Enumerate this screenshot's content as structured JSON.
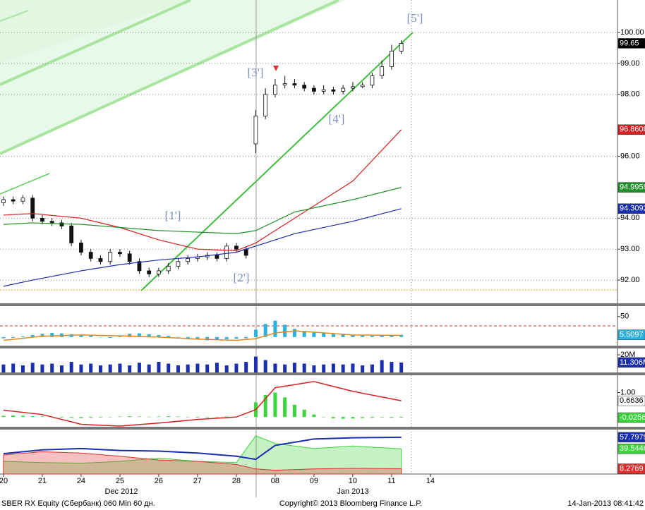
{
  "chart_data": [
    {
      "type": "candlestick",
      "xlim": [
        -0.09,
        15.82
      ],
      "xticks": [
        {
          "value": 0,
          "label": "20"
        },
        {
          "value": 1,
          "label": "21"
        },
        {
          "value": 2,
          "label": "24"
        },
        {
          "value": 3,
          "label": "25"
        },
        {
          "value": 4,
          "label": "26"
        },
        {
          "value": 5,
          "label": "27"
        },
        {
          "value": 6,
          "label": "28"
        },
        {
          "value": 7,
          "label": "08"
        },
        {
          "value": 8,
          "label": "09"
        },
        {
          "value": 9,
          "label": "10"
        },
        {
          "value": 10,
          "label": "11"
        },
        {
          "value": 11,
          "label": "14"
        }
      ],
      "months": [
        "Dec 2012",
        "Jan 2013"
      ],
      "ylim": [
        91.25,
        101.05
      ],
      "yticks": [
        {
          "value": 92,
          "label": "92.00"
        },
        {
          "value": 93,
          "label": "93.00"
        },
        {
          "value": 94,
          "label": "94.00"
        },
        {
          "value": 96,
          "label": "96.00"
        },
        {
          "value": 98,
          "label": "98.00"
        },
        {
          "value": 99,
          "label": "99.00"
        },
        {
          "value": 100,
          "label": "100.00"
        }
      ],
      "grid": true,
      "x": [
        0,
        0.25,
        0.5,
        0.75,
        1,
        1.25,
        1.5,
        1.75,
        2,
        2.25,
        2.5,
        2.75,
        3,
        3.25,
        3.5,
        3.75,
        4,
        4.25,
        4.5,
        4.75,
        5,
        5.25,
        5.5,
        5.75,
        6,
        6.25,
        6.5,
        6.75,
        7,
        7.25,
        7.5,
        7.75,
        8,
        8.25,
        8.5,
        8.75,
        9,
        9.25,
        9.5,
        9.75,
        10,
        10.25
      ],
      "open": [
        94.5,
        94.6,
        94.55,
        94.65,
        94.0,
        93.9,
        93.85,
        93.75,
        93.2,
        92.9,
        92.7,
        92.6,
        92.9,
        92.85,
        92.6,
        92.3,
        92.2,
        92.3,
        92.45,
        92.6,
        92.7,
        92.75,
        92.8,
        92.7,
        93.1,
        93.0,
        96.4,
        97.3,
        98.0,
        98.3,
        98.35,
        98.3,
        98.2,
        98.1,
        98.15,
        98.1,
        98.2,
        98.25,
        98.3,
        98.6,
        98.9,
        99.4
      ],
      "high": [
        94.7,
        94.7,
        94.75,
        94.75,
        94.1,
        94.0,
        93.95,
        93.85,
        93.3,
        93.0,
        92.8,
        93.0,
        93.0,
        92.95,
        92.7,
        92.4,
        92.4,
        92.55,
        92.7,
        92.8,
        92.85,
        92.9,
        92.9,
        93.2,
        93.2,
        93.1,
        97.5,
        98.2,
        98.5,
        98.6,
        98.5,
        98.4,
        98.3,
        98.3,
        98.25,
        98.3,
        98.4,
        98.4,
        98.7,
        99.1,
        99.6,
        99.75
      ],
      "low": [
        94.4,
        94.45,
        94.45,
        93.9,
        93.8,
        93.75,
        93.65,
        93.1,
        92.8,
        92.6,
        92.5,
        92.5,
        92.75,
        92.5,
        92.2,
        92.1,
        92.1,
        92.2,
        92.35,
        92.5,
        92.6,
        92.65,
        92.6,
        92.6,
        92.9,
        92.7,
        96.1,
        97.2,
        97.9,
        98.2,
        98.2,
        98.1,
        98.0,
        98.0,
        98.0,
        98.0,
        98.1,
        98.2,
        98.2,
        98.5,
        98.8,
        99.3
      ],
      "close": [
        94.6,
        94.55,
        94.65,
        94.0,
        93.9,
        93.85,
        93.75,
        93.2,
        92.9,
        92.7,
        92.6,
        92.9,
        92.85,
        92.6,
        92.3,
        92.2,
        92.3,
        92.45,
        92.6,
        92.7,
        92.75,
        92.8,
        92.7,
        93.1,
        93.0,
        92.8,
        97.3,
        98.0,
        98.3,
        98.35,
        98.3,
        98.2,
        98.1,
        98.15,
        98.1,
        98.2,
        98.25,
        98.3,
        98.6,
        98.9,
        99.4,
        99.65
      ],
      "last_value": 99.65,
      "series": [
        {
          "color": "#d62020",
          "x": [
            0,
            0.75,
            2,
            3,
            4,
            5,
            6,
            6.5,
            7.5,
            9,
            10.25
          ],
          "values": [
            94.1,
            94.15,
            94.0,
            93.7,
            93.3,
            93.0,
            92.95,
            93.2,
            94.0,
            95.2,
            96.8608
          ],
          "last_value": 96.8608
        },
        {
          "color": "#1f8f2a",
          "x": [
            0,
            0.75,
            2,
            3,
            4,
            5,
            6,
            6.5,
            7.5,
            9,
            10.25
          ],
          "values": [
            93.8,
            93.85,
            93.8,
            93.7,
            93.6,
            93.55,
            93.5,
            93.6,
            94.2,
            94.6,
            94.9959
          ],
          "last_value": 94.9959
        },
        {
          "color": "#1a2fb0",
          "x": [
            0,
            0.75,
            2,
            3,
            4,
            5,
            6,
            6.5,
            7.5,
            9,
            10.25
          ],
          "values": [
            91.8,
            92.0,
            92.3,
            92.5,
            92.65,
            92.75,
            92.9,
            93.1,
            93.5,
            93.9,
            94.3092
          ],
          "last_value": 94.3092
        }
      ],
      "annotations": [
        "[1']",
        "[2']",
        "[3']",
        "[4']",
        "[5']"
      ]
    },
    {
      "type": "bar",
      "color": "#2ab3e0",
      "ylim": [
        -21,
        79
      ],
      "yticks": [
        50
      ],
      "x": [
        0,
        0.25,
        0.5,
        0.75,
        1,
        1.25,
        1.5,
        1.75,
        2,
        2.25,
        2.5,
        2.75,
        3,
        3.25,
        3.5,
        3.75,
        4,
        4.25,
        4.5,
        4.75,
        5,
        5.25,
        5.5,
        5.75,
        6,
        6.25,
        6.5,
        6.75,
        7,
        7.25,
        7.5,
        7.75,
        8,
        8.25,
        8.5,
        8.75,
        9,
        9.25,
        9.5,
        9.75,
        10,
        10.25
      ],
      "values": [
        -3,
        -2,
        2,
        5,
        8,
        10,
        9,
        7,
        5,
        3,
        0,
        -2,
        3,
        8,
        9,
        7,
        5,
        3,
        0,
        -4,
        -6,
        -8,
        -7,
        -5,
        -4,
        -3,
        18,
        32,
        40,
        30,
        20,
        15,
        12,
        10,
        8,
        6,
        5,
        4,
        3,
        3,
        4,
        5.5097
      ],
      "last_value": 5.5097,
      "series": [
        {
          "color": "#e08a1e",
          "x": [
            0,
            1,
            2,
            3,
            4,
            5,
            6,
            6.5,
            7,
            7.5,
            8,
            9,
            10.25
          ],
          "values": [
            -8,
            2,
            5,
            3,
            0,
            -5,
            -8,
            -4,
            10,
            15,
            12,
            5,
            4
          ]
        }
      ]
    },
    {
      "type": "bar",
      "color": "#1a2fb0",
      "ylim": [
        0,
        24.8
      ],
      "yticks": [
        {
          "value": 20,
          "label": "20M"
        }
      ],
      "x": [
        0,
        0.25,
        0.5,
        0.75,
        1,
        1.25,
        1.5,
        1.75,
        2,
        2.25,
        2.5,
        2.75,
        3,
        3.25,
        3.5,
        3.75,
        4,
        4.25,
        4.5,
        4.75,
        5,
        5.25,
        5.5,
        5.75,
        6,
        6.25,
        6.5,
        6.75,
        7,
        7.25,
        7.5,
        7.75,
        8,
        8.25,
        8.5,
        8.75,
        9,
        9.25,
        9.5,
        9.75,
        10,
        10.25
      ],
      "values": [
        9,
        10,
        8,
        11,
        9,
        10,
        8,
        12,
        9,
        10,
        8,
        9,
        10,
        8,
        11,
        9,
        12,
        10,
        8,
        9,
        10,
        9,
        11,
        8,
        10,
        12,
        18,
        14,
        10,
        9,
        11,
        10,
        8,
        9,
        10,
        9,
        10,
        8,
        9,
        14,
        12,
        11.306
      ],
      "last_value": 11.306,
      "last_label": "11.306M",
      "series": []
    },
    {
      "type": "bar",
      "color": "#3bd43b",
      "ylim": [
        -0.4,
        1.65
      ],
      "yticks": [
        {
          "value": 1,
          "label": "1.00"
        }
      ],
      "x": [
        0,
        0.25,
        0.5,
        0.75,
        1,
        1.25,
        1.5,
        1.75,
        2,
        2.25,
        2.5,
        2.75,
        3,
        3.25,
        3.5,
        3.75,
        4,
        4.25,
        4.5,
        4.75,
        5,
        5.25,
        5.5,
        5.75,
        6,
        6.25,
        6.5,
        6.75,
        7,
        7.25,
        7.5,
        7.75,
        8,
        8.25,
        8.5,
        8.75,
        9,
        9.25,
        9.5,
        9.75,
        10,
        10.25
      ],
      "values": [
        0.05,
        0.06,
        0.05,
        0.03,
        0.02,
        0,
        -0.02,
        -0.03,
        -0.04,
        -0.03,
        -0.02,
        0,
        0.02,
        0.03,
        0.02,
        0.01,
        0.02,
        0.03,
        0.02,
        0,
        -0.02,
        -0.02,
        -0.01,
        0.02,
        0.01,
        0,
        0.6,
        0.9,
        1.0,
        0.8,
        0.5,
        0.3,
        0.1,
        0,
        -0.05,
        -0.07,
        -0.06,
        -0.04,
        -0.03,
        -0.02,
        -0.03,
        -0.0256
      ],
      "last_value": -0.0256,
      "series": [
        {
          "color": "#d62020",
          "x": [
            0,
            1,
            2,
            3,
            4,
            5,
            6,
            6.5,
            7,
            8,
            9,
            10.25
          ],
          "values": [
            0.28,
            0.1,
            -0.3,
            -0.37,
            -0.25,
            -0.1,
            0.0,
            0.3,
            1.2,
            1.45,
            1.05,
            0.6636
          ],
          "last_value": 0.6636
        }
      ]
    },
    {
      "type": "area",
      "ylim": [
        0,
        66.5
      ],
      "yticks": [],
      "series": [
        {
          "color": "#3bd43b",
          "x": [
            0,
            1,
            2,
            3,
            4,
            5,
            6,
            6.5,
            7,
            8,
            9,
            10.25
          ],
          "values": [
            20,
            18,
            17,
            20,
            25,
            20,
            18,
            60,
            48,
            40,
            44,
            39.5446
          ],
          "last_value": 39.5446
        },
        {
          "color": "#e03030",
          "x": [
            0,
            1,
            2,
            3,
            4,
            5,
            6,
            6.5,
            7,
            8,
            9,
            10.25
          ],
          "values": [
            30,
            35,
            33,
            28,
            22,
            20,
            15,
            8,
            6,
            8,
            9,
            8.2769
          ],
          "last_value": 8.2769
        },
        {
          "color": "#1a2fb0",
          "x": [
            0,
            1,
            2,
            3,
            4,
            5,
            6,
            6.5,
            7,
            8,
            9,
            10.25
          ],
          "values": [
            32,
            38,
            40,
            37,
            36,
            33,
            28,
            23,
            45,
            55,
            57,
            57.7979
          ],
          "last_value": 57.7979
        }
      ]
    }
  ],
  "footer": {
    "left": "SBER RX Equity (Сбербанк) 060 Min 60 дн.",
    "center": "Copyright© 2013 Bloomberg Finance L.P.",
    "right": "14-Jan-2013 08:41:42"
  }
}
